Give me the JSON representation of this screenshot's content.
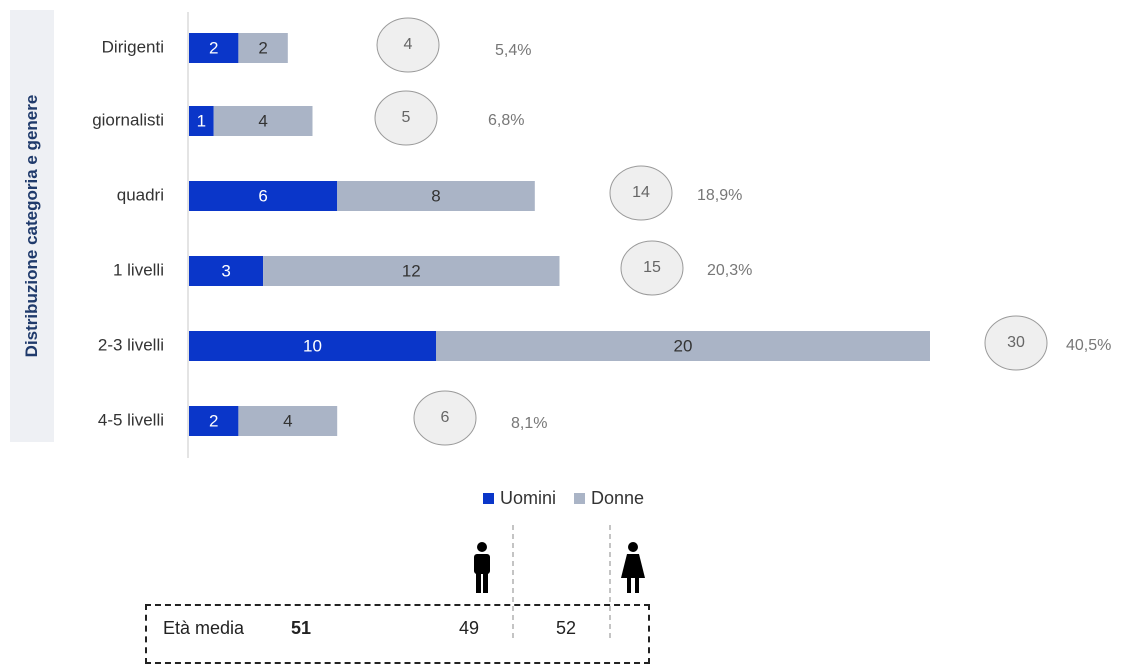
{
  "side_title": "Distribuzione categoria e genere",
  "chart_data": {
    "type": "bar",
    "orientation": "horizontal",
    "stacked": true,
    "categories": [
      "Dirigenti",
      "giornalisti",
      "quadri",
      "1 livelli",
      "2-3 livelli",
      "4-5 livelli"
    ],
    "series": [
      {
        "name": "Uomini",
        "values": [
          2,
          1,
          6,
          3,
          10,
          2
        ]
      },
      {
        "name": "Donne",
        "values": [
          2,
          4,
          8,
          12,
          20,
          4
        ]
      }
    ],
    "totals": [
      4,
      5,
      14,
      15,
      30,
      6
    ],
    "percentages": [
      "5,4%",
      "6,8%",
      "18,9%",
      "20,3%",
      "40,5%",
      "8,1%"
    ],
    "xlim": [
      0,
      30
    ],
    "legend_position": "bottom",
    "colors": {
      "Uomini": "#0a36c9",
      "Donne": "#aab4c6",
      "circle_fill": "#efefef",
      "circle_stroke": "#9a9a9a",
      "pct_text": "#777777"
    }
  },
  "legend": {
    "men": "Uomini",
    "women": "Donne"
  },
  "age": {
    "label": "Età media",
    "average": "51",
    "men": "49",
    "women": "52",
    "icons": [
      "man-icon",
      "woman-icon"
    ]
  }
}
